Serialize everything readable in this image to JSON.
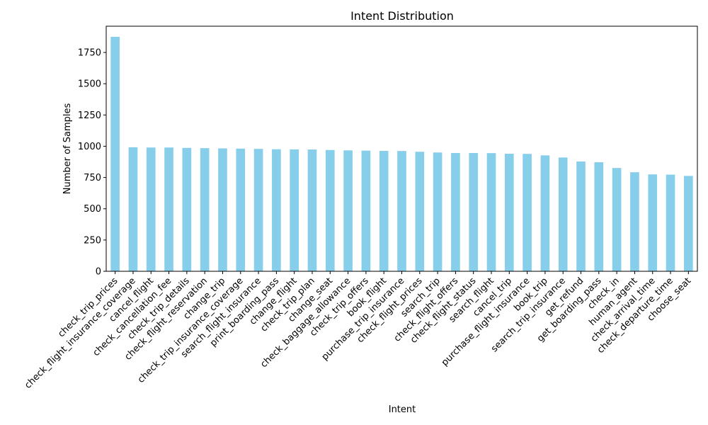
{
  "chart_data": {
    "type": "bar",
    "title": "Intent Distribution",
    "xlabel": "Intent",
    "ylabel": "Number of Samples",
    "ylim": [
      0,
      1960
    ],
    "yticks": [
      0,
      250,
      500,
      750,
      1000,
      1250,
      1500,
      1750
    ],
    "bar_color": "#87ceeb",
    "grid": false,
    "legend": "none",
    "categories": [
      "check_trip_prices",
      "check_flight_insurance_coverage",
      "cancel_flight",
      "check_cancellation_fee",
      "check_trip_details",
      "check_flight_reservation",
      "change_trip",
      "check_trip_insurance_coverage",
      "search_flight_insurance",
      "print_boarding_pass",
      "change_flight",
      "check_trip_plan",
      "change_seat",
      "check_baggage_allowance",
      "check_trip_offers",
      "book_flight",
      "purchase_trip_insurance",
      "check_flight_prices",
      "search_trip",
      "check_flight_offers",
      "check_flight_status",
      "search_flight",
      "cancel_trip",
      "purchase_flight_insurance",
      "book_trip",
      "search_trip_insurance",
      "get_refund",
      "get_boarding_pass",
      "check_in",
      "human_agent",
      "check_arrival_time",
      "check_departure_time",
      "choose_seat"
    ],
    "values": [
      1875,
      992,
      990,
      990,
      987,
      985,
      983,
      981,
      979,
      976,
      975,
      974,
      970,
      967,
      965,
      963,
      962,
      956,
      950,
      946,
      946,
      945,
      940,
      939,
      927,
      910,
      878,
      872,
      826,
      792,
      775,
      773,
      763
    ]
  }
}
